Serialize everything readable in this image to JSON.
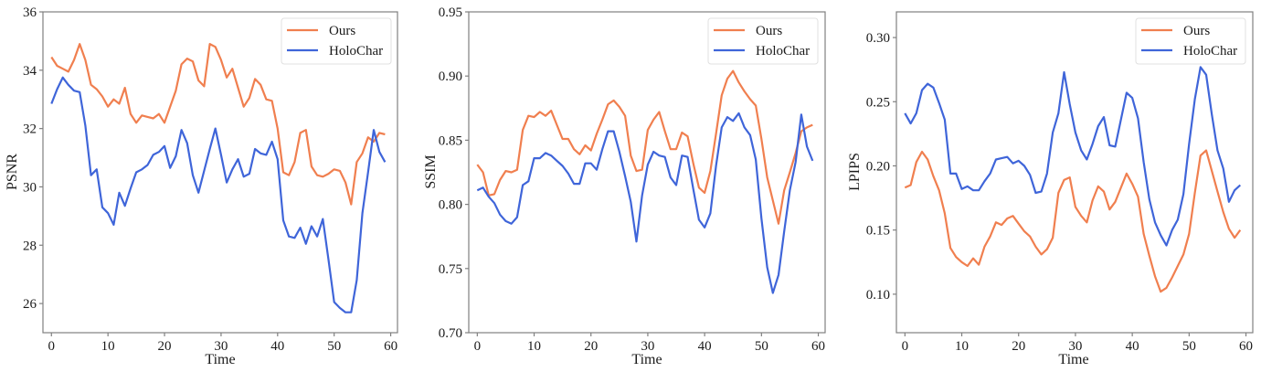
{
  "colors": {
    "ours": "#F07F4F",
    "holochar": "#3F65D9",
    "spine": "#808080",
    "legend_border": "#e0e0e0"
  },
  "chart_data": [
    {
      "type": "line",
      "title": "",
      "xlabel": "Time",
      "ylabel": "PSNR",
      "xlim": [
        -1.5,
        61.2
      ],
      "ylim": [
        25,
        36
      ],
      "xticks": [
        0,
        10,
        20,
        30,
        40,
        50,
        60
      ],
      "yticks": [
        26,
        28,
        30,
        32,
        34,
        36
      ],
      "ytick_labels": [
        "26",
        "28",
        "30",
        "32",
        "34",
        "36"
      ],
      "xtick_labels": [
        "0",
        "10",
        "20",
        "30",
        "40",
        "50",
        "60"
      ],
      "grid": false,
      "legend_position": "upper right",
      "x": [
        0,
        1,
        2,
        3,
        4,
        5,
        6,
        7,
        8,
        9,
        10,
        11,
        12,
        13,
        14,
        15,
        16,
        17,
        18,
        19,
        20,
        21,
        22,
        23,
        24,
        25,
        26,
        27,
        28,
        29,
        30,
        31,
        32,
        33,
        34,
        35,
        36,
        37,
        38,
        39,
        40,
        41,
        42,
        43,
        44,
        45,
        46,
        47,
        48,
        49,
        50,
        51,
        52,
        53,
        54,
        55,
        56,
        57,
        58,
        59
      ],
      "series": [
        {
          "name": "Ours",
          "color": "#F07F4F",
          "values": [
            34.45,
            34.15,
            34.05,
            33.95,
            34.35,
            34.9,
            34.35,
            33.5,
            33.35,
            33.1,
            32.75,
            33.0,
            32.85,
            33.4,
            32.5,
            32.2,
            32.45,
            32.4,
            32.35,
            32.5,
            32.2,
            32.75,
            33.3,
            34.2,
            34.4,
            34.3,
            33.65,
            33.45,
            34.9,
            34.8,
            34.35,
            33.75,
            34.05,
            33.4,
            32.75,
            33.05,
            33.7,
            33.5,
            33.0,
            32.95,
            32.0,
            30.5,
            30.4,
            30.85,
            31.85,
            31.95,
            30.7,
            30.4,
            30.35,
            30.45,
            30.6,
            30.55,
            30.15,
            29.4,
            30.85,
            31.15,
            31.7,
            31.55,
            31.85,
            31.8
          ]
        },
        {
          "name": "HoloChar",
          "color": "#3F65D9",
          "values": [
            32.85,
            33.35,
            33.75,
            33.5,
            33.3,
            33.25,
            32.1,
            30.4,
            30.6,
            29.3,
            29.1,
            28.7,
            29.8,
            29.35,
            29.95,
            30.5,
            30.6,
            30.75,
            31.1,
            31.2,
            31.4,
            30.65,
            31.05,
            31.95,
            31.5,
            30.4,
            29.8,
            30.55,
            31.3,
            32.0,
            31.1,
            30.15,
            30.6,
            30.95,
            30.35,
            30.45,
            31.3,
            31.15,
            31.1,
            31.55,
            30.95,
            28.85,
            28.3,
            28.25,
            28.6,
            28.05,
            28.65,
            28.3,
            28.9,
            27.5,
            26.05,
            25.85,
            25.7,
            25.7,
            26.8,
            29.1,
            30.5,
            31.95,
            31.2,
            30.85
          ]
        }
      ]
    },
    {
      "type": "line",
      "title": "",
      "xlabel": "Time",
      "ylabel": "SSIM",
      "xlim": [
        -1.5,
        61.2
      ],
      "ylim": [
        0.7,
        0.95
      ],
      "xticks": [
        0,
        10,
        20,
        30,
        40,
        50,
        60
      ],
      "yticks": [
        0.7,
        0.75,
        0.8,
        0.85,
        0.9,
        0.95
      ],
      "ytick_labels": [
        "0.70",
        "0.75",
        "0.80",
        "0.85",
        "0.90",
        "0.95"
      ],
      "xtick_labels": [
        "0",
        "10",
        "20",
        "30",
        "40",
        "50",
        "60"
      ],
      "grid": false,
      "legend_position": "upper right",
      "x": [
        0,
        1,
        2,
        3,
        4,
        5,
        6,
        7,
        8,
        9,
        10,
        11,
        12,
        13,
        14,
        15,
        16,
        17,
        18,
        19,
        20,
        21,
        22,
        23,
        24,
        25,
        26,
        27,
        28,
        29,
        30,
        31,
        32,
        33,
        34,
        35,
        36,
        37,
        38,
        39,
        40,
        41,
        42,
        43,
        44,
        45,
        46,
        47,
        48,
        49,
        50,
        51,
        52,
        53,
        54,
        55,
        56,
        57,
        58,
        59
      ],
      "series": [
        {
          "name": "Ours",
          "color": "#F07F4F",
          "values": [
            0.831,
            0.825,
            0.807,
            0.808,
            0.819,
            0.826,
            0.825,
            0.827,
            0.858,
            0.869,
            0.868,
            0.872,
            0.869,
            0.873,
            0.862,
            0.851,
            0.851,
            0.843,
            0.839,
            0.846,
            0.842,
            0.855,
            0.866,
            0.878,
            0.881,
            0.876,
            0.869,
            0.838,
            0.826,
            0.827,
            0.858,
            0.866,
            0.872,
            0.857,
            0.843,
            0.843,
            0.856,
            0.853,
            0.832,
            0.813,
            0.809,
            0.826,
            0.855,
            0.885,
            0.898,
            0.904,
            0.895,
            0.888,
            0.882,
            0.877,
            0.851,
            0.821,
            0.803,
            0.785,
            0.811,
            0.825,
            0.84,
            0.857,
            0.86,
            0.862
          ]
        },
        {
          "name": "HoloChar",
          "color": "#3F65D9",
          "values": [
            0.811,
            0.813,
            0.806,
            0.801,
            0.792,
            0.787,
            0.785,
            0.79,
            0.815,
            0.818,
            0.836,
            0.836,
            0.84,
            0.838,
            0.834,
            0.83,
            0.824,
            0.816,
            0.816,
            0.832,
            0.832,
            0.827,
            0.843,
            0.857,
            0.857,
            0.841,
            0.822,
            0.802,
            0.771,
            0.807,
            0.831,
            0.841,
            0.838,
            0.837,
            0.821,
            0.815,
            0.838,
            0.837,
            0.812,
            0.788,
            0.782,
            0.793,
            0.83,
            0.86,
            0.868,
            0.865,
            0.871,
            0.86,
            0.854,
            0.835,
            0.789,
            0.751,
            0.731,
            0.745,
            0.779,
            0.811,
            0.833,
            0.87,
            0.845,
            0.834
          ]
        }
      ]
    },
    {
      "type": "line",
      "title": "",
      "xlabel": "Time",
      "ylabel": "LPIPS",
      "xlim": [
        -1.5,
        61.2
      ],
      "ylim": [
        0.07,
        0.32
      ],
      "xticks": [
        0,
        10,
        20,
        30,
        40,
        50,
        60
      ],
      "yticks": [
        0.1,
        0.15,
        0.2,
        0.25,
        0.3
      ],
      "ytick_labels": [
        "0.10",
        "0.15",
        "0.20",
        "0.25",
        "0.30"
      ],
      "xtick_labels": [
        "0",
        "10",
        "20",
        "30",
        "40",
        "50",
        "60"
      ],
      "grid": false,
      "legend_position": "upper right",
      "x": [
        0,
        1,
        2,
        3,
        4,
        5,
        6,
        7,
        8,
        9,
        10,
        11,
        12,
        13,
        14,
        15,
        16,
        17,
        18,
        19,
        20,
        21,
        22,
        23,
        24,
        25,
        26,
        27,
        28,
        29,
        30,
        31,
        32,
        33,
        34,
        35,
        36,
        37,
        38,
        39,
        40,
        41,
        42,
        43,
        44,
        45,
        46,
        47,
        48,
        49,
        50,
        51,
        52,
        53,
        54,
        55,
        56,
        57,
        58,
        59
      ],
      "series": [
        {
          "name": "Ours",
          "color": "#F07F4F",
          "values": [
            0.183,
            0.185,
            0.203,
            0.211,
            0.205,
            0.192,
            0.181,
            0.163,
            0.136,
            0.129,
            0.125,
            0.122,
            0.128,
            0.123,
            0.137,
            0.145,
            0.156,
            0.154,
            0.159,
            0.161,
            0.155,
            0.149,
            0.145,
            0.137,
            0.131,
            0.135,
            0.144,
            0.179,
            0.189,
            0.191,
            0.168,
            0.161,
            0.156,
            0.173,
            0.184,
            0.18,
            0.166,
            0.172,
            0.183,
            0.194,
            0.186,
            0.176,
            0.147,
            0.13,
            0.114,
            0.102,
            0.105,
            0.113,
            0.122,
            0.131,
            0.147,
            0.179,
            0.208,
            0.212,
            0.196,
            0.18,
            0.164,
            0.151,
            0.144,
            0.15
          ]
        },
        {
          "name": "HoloChar",
          "color": "#3F65D9",
          "values": [
            0.241,
            0.233,
            0.241,
            0.259,
            0.264,
            0.261,
            0.249,
            0.236,
            0.194,
            0.194,
            0.182,
            0.184,
            0.181,
            0.181,
            0.188,
            0.194,
            0.205,
            0.206,
            0.207,
            0.202,
            0.204,
            0.2,
            0.193,
            0.179,
            0.18,
            0.194,
            0.226,
            0.241,
            0.273,
            0.248,
            0.226,
            0.212,
            0.205,
            0.217,
            0.231,
            0.238,
            0.216,
            0.215,
            0.236,
            0.257,
            0.253,
            0.237,
            0.203,
            0.174,
            0.156,
            0.146,
            0.138,
            0.15,
            0.158,
            0.178,
            0.217,
            0.252,
            0.277,
            0.271,
            0.24,
            0.212,
            0.198,
            0.172,
            0.181,
            0.185
          ]
        }
      ]
    }
  ],
  "panels": [
    {
      "ylabel": "PSNR",
      "xlabel": "Time",
      "legend": [
        "Ours",
        "HoloChar"
      ]
    },
    {
      "ylabel": "SSIM",
      "xlabel": "Time",
      "legend": [
        "Ours",
        "HoloChar"
      ]
    },
    {
      "ylabel": "LPIPS",
      "xlabel": "Time",
      "legend": [
        "Ours",
        "HoloChar"
      ]
    }
  ]
}
